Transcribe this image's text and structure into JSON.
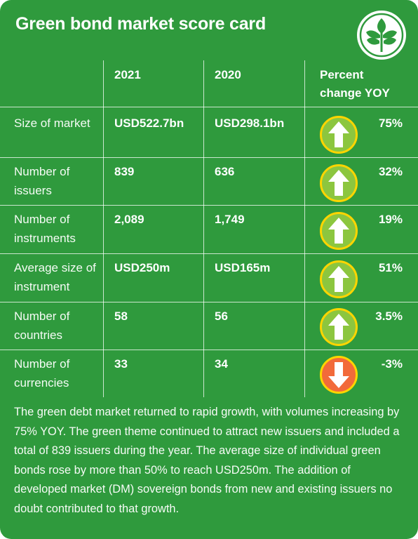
{
  "title": "Green bond market score card",
  "logo_icon": "leaf-logo-icon",
  "colors": {
    "background": "#2f9a3d",
    "up_arrow": "#8cc63f",
    "down_arrow": "#f26a3a",
    "ring": "#ffd500"
  },
  "columns": {
    "year_current": "2021",
    "year_previous": "2020",
    "change": "Percent change YOY"
  },
  "rows": [
    {
      "label": "Size of market",
      "current": "USD522.7bn",
      "previous": "USD298.1bn",
      "direction": "up",
      "change": "75%"
    },
    {
      "label": "Number of issuers",
      "current": "839",
      "previous": "636",
      "direction": "up",
      "change": "32%"
    },
    {
      "label": "Number of instruments",
      "current": "2,089",
      "previous": "1,749",
      "direction": "up",
      "change": "19%"
    },
    {
      "label": "Average size of instrument",
      "current": "USD250m",
      "previous": "USD165m",
      "direction": "up",
      "change": "51%"
    },
    {
      "label": "Number of countries",
      "current": "58",
      "previous": "56",
      "direction": "up",
      "change": "3.5%"
    },
    {
      "label": "Number of currencies",
      "current": "33",
      "previous": "34",
      "direction": "down",
      "change": "-3%"
    }
  ],
  "description": "The green debt market returned to rapid growth, with volumes increasing by 75% YOY. The green theme continued to attract new issuers and included a total of 839 issuers during the year. The average size of individual green bonds rose by more than 50% to reach USD250m. The addition of developed market (DM) sovereign bonds from new and existing issuers no doubt contributed to that growth."
}
